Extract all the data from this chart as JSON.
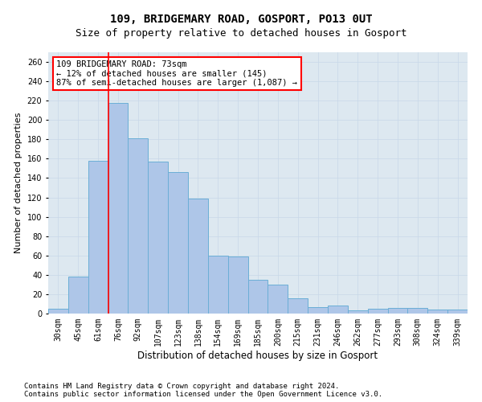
{
  "title1": "109, BRIDGEMARY ROAD, GOSPORT, PO13 0UT",
  "title2": "Size of property relative to detached houses in Gosport",
  "xlabel": "Distribution of detached houses by size in Gosport",
  "ylabel": "Number of detached properties",
  "categories": [
    "30sqm",
    "45sqm",
    "61sqm",
    "76sqm",
    "92sqm",
    "107sqm",
    "123sqm",
    "138sqm",
    "154sqm",
    "169sqm",
    "185sqm",
    "200sqm",
    "215sqm",
    "231sqm",
    "246sqm",
    "262sqm",
    "277sqm",
    "293sqm",
    "308sqm",
    "324sqm",
    "339sqm"
  ],
  "values": [
    5,
    38,
    158,
    218,
    181,
    157,
    146,
    119,
    60,
    59,
    35,
    30,
    16,
    7,
    8,
    3,
    5,
    6,
    6,
    4,
    4
  ],
  "bar_color": "#aec6e8",
  "bar_edge_color": "#6baed6",
  "bar_linewidth": 0.7,
  "vline_color": "red",
  "vline_linewidth": 1.2,
  "vline_x": 2.5,
  "annotation_text": "109 BRIDGEMARY ROAD: 73sqm\n← 12% of detached houses are smaller (145)\n87% of semi-detached houses are larger (1,087) →",
  "ylim": [
    0,
    270
  ],
  "yticks": [
    0,
    20,
    40,
    60,
    80,
    100,
    120,
    140,
    160,
    180,
    200,
    220,
    240,
    260
  ],
  "grid_color": "#c8d8e8",
  "background_color": "#dde8f0",
  "footer1": "Contains HM Land Registry data © Crown copyright and database right 2024.",
  "footer2": "Contains public sector information licensed under the Open Government Licence v3.0.",
  "title1_fontsize": 10,
  "title2_fontsize": 9,
  "xlabel_fontsize": 8.5,
  "ylabel_fontsize": 8,
  "tick_fontsize": 7,
  "annotation_fontsize": 7.5,
  "footer_fontsize": 6.5
}
